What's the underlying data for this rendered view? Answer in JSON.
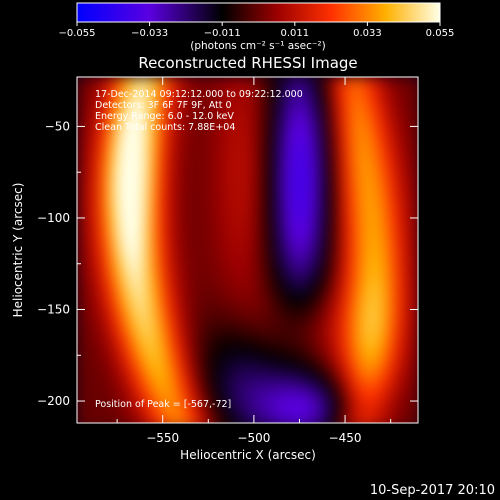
{
  "chart_data": {
    "type": "heatmap",
    "title": "Reconstructed RHESSI Image",
    "xlabel": "Heliocentric X (arcsec)",
    "ylabel": "Heliocentric Y (arcsec)",
    "xlim": [
      -597,
      -410
    ],
    "ylim": [
      -212,
      -23
    ],
    "x_ticks": [
      -550,
      -500,
      -450
    ],
    "y_ticks": [
      -50,
      -100,
      -150,
      -200
    ],
    "x_tick_labels": [
      "−550",
      "−500",
      "−450"
    ],
    "y_tick_labels": [
      "−50",
      "−100",
      "−150",
      "−200"
    ],
    "colorbar": {
      "range": [
        -0.055,
        0.055
      ],
      "ticks": [
        -0.055,
        -0.033,
        -0.011,
        0.011,
        0.033,
        0.055
      ],
      "tick_labels": [
        "−0.055",
        "−0.033",
        "−0.011",
        "0.011",
        "0.033",
        "0.055"
      ],
      "unit_label": "(photons cm⁻² s⁻¹ asec⁻²)"
    },
    "annotations": [
      "17-Dec-2014 09:12:12.000 to 09:22:12.000",
      "Detectors: 3F 6F 7F 9F, Att 0",
      "Energy Range: 6.0 - 12.0 keV",
      "Clean     Total counts: 7.88E+04"
    ],
    "peak_label": "Position of Peak = [-567,-72]",
    "peak": [
      -567,
      -72
    ]
  },
  "footer": {
    "timestamp": "10-Sep-2017 20:10"
  }
}
